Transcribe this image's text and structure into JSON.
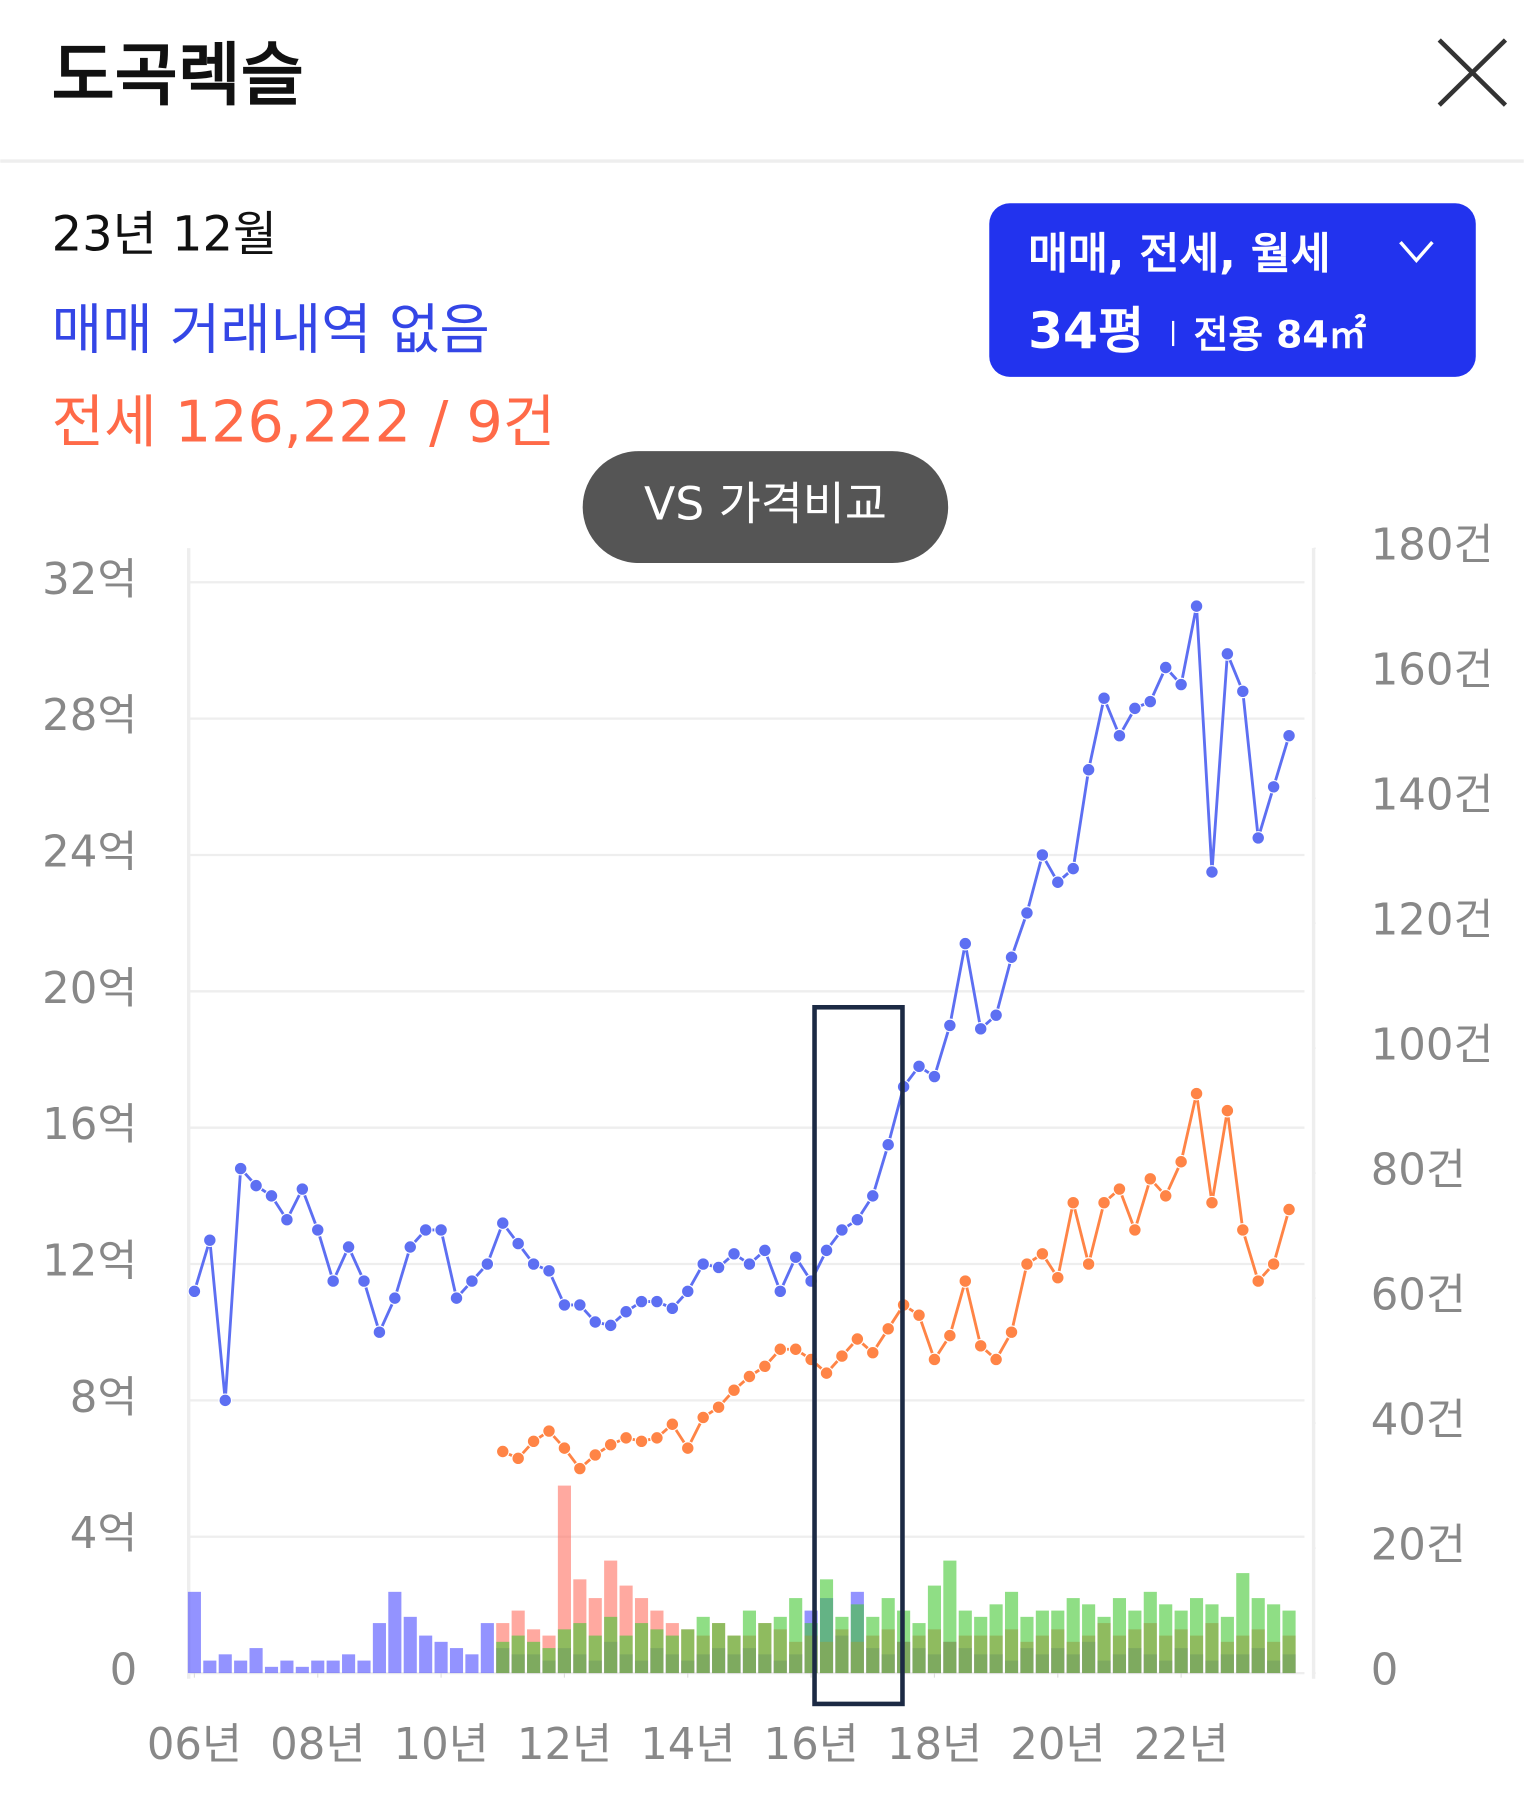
{
  "header": {
    "title": "도곡렉슬"
  },
  "info": {
    "date": "23년 12월",
    "sale": "매매 거래내역 없음",
    "jeonse": "전세 126,222 / 9건"
  },
  "filter": {
    "types": "매매, 전세, 월세",
    "size": "34평",
    "area": "전용 84㎡"
  },
  "compare": "VS 가격비교",
  "chart_data": {
    "type": "combo",
    "grid": true,
    "xlim": [
      2006,
      2024
    ],
    "xticks": [
      {
        "value": 2006,
        "label": "06년"
      },
      {
        "value": 2008,
        "label": "08년"
      },
      {
        "value": 2010,
        "label": "10년"
      },
      {
        "value": 2012,
        "label": "12년"
      },
      {
        "value": 2014,
        "label": "14년"
      },
      {
        "value": 2016,
        "label": "16년"
      },
      {
        "value": 2018,
        "label": "18년"
      },
      {
        "value": 2020,
        "label": "20년"
      },
      {
        "value": 2022,
        "label": "22년"
      }
    ],
    "ylim": [
      0,
      33
    ],
    "yticks": [
      0,
      {
        "value": 4,
        "label": "4억"
      },
      {
        "value": 8,
        "label": "8억"
      },
      {
        "value": 12,
        "label": "12억"
      },
      {
        "value": 16,
        "label": "16억"
      },
      {
        "value": 20,
        "label": "20억"
      },
      {
        "value": 24,
        "label": "24억"
      },
      {
        "value": 28,
        "label": "28억"
      },
      {
        "value": 32,
        "label": "32억"
      }
    ],
    "y2lim": [
      0,
      180
    ],
    "y2ticks": [
      0,
      {
        "value": 20,
        "label": "20건"
      },
      {
        "value": 40,
        "label": "40건"
      },
      {
        "value": 60,
        "label": "60건"
      },
      {
        "value": 80,
        "label": "80건"
      },
      {
        "value": 100,
        "label": "100건"
      },
      {
        "value": 120,
        "label": "120건"
      },
      {
        "value": 140,
        "label": "140건"
      },
      {
        "value": 160,
        "label": "160건"
      },
      {
        "value": 180,
        "label": "180건"
      }
    ],
    "x": [
      2006,
      2006.25,
      2006.5,
      2006.75,
      2007,
      2007.25,
      2007.5,
      2007.75,
      2008,
      2008.25,
      2008.5,
      2008.75,
      2009,
      2009.25,
      2009.5,
      2009.75,
      2010,
      2010.25,
      2010.5,
      2010.75,
      2011,
      2011.25,
      2011.5,
      2011.75,
      2012,
      2012.25,
      2012.5,
      2012.75,
      2013,
      2013.25,
      2013.5,
      2013.75,
      2014,
      2014.25,
      2014.5,
      2014.75,
      2015,
      2015.25,
      2015.5,
      2015.75,
      2016,
      2016.25,
      2016.5,
      2016.75,
      2017,
      2017.25,
      2017.5,
      2017.75,
      2018,
      2018.25,
      2018.5,
      2018.75,
      2019,
      2019.25,
      2019.5,
      2019.75,
      2020,
      2020.25,
      2020.5,
      2020.75,
      2021,
      2021.25,
      2021.5,
      2021.75,
      2022,
      2022.25,
      2022.5,
      2022.75,
      2023,
      2023.25,
      2023.5,
      2023.75
    ],
    "series": [
      {
        "type": "bar",
        "axis": "y2",
        "color": "#4b4bff",
        "values": [
          13,
          2,
          3,
          2,
          4,
          1,
          2,
          1,
          2,
          2,
          3,
          2,
          8,
          13,
          9,
          6,
          5,
          4,
          3,
          8,
          4,
          3,
          3,
          2,
          4,
          3,
          2,
          5,
          3,
          2,
          4,
          3,
          2,
          3,
          4,
          3,
          4,
          3,
          2,
          3,
          10,
          12,
          6,
          13,
          4,
          3,
          5,
          4,
          3,
          5,
          4,
          3,
          3,
          2,
          4,
          3,
          4,
          3,
          5,
          2,
          3,
          4,
          3,
          2,
          4,
          3,
          2,
          3,
          3,
          4,
          2,
          3
        ]
      },
      {
        "type": "bar",
        "axis": "y2",
        "color": "#ff7060",
        "values": [
          null,
          null,
          null,
          null,
          null,
          null,
          null,
          null,
          null,
          null,
          null,
          null,
          null,
          null,
          null,
          null,
          null,
          null,
          null,
          null,
          8,
          10,
          7,
          6,
          30,
          15,
          12,
          18,
          14,
          12,
          10,
          8,
          7,
          6,
          8,
          6,
          6,
          8,
          7,
          5,
          6,
          5,
          7,
          5,
          6,
          7,
          5,
          6,
          7,
          5,
          6,
          6,
          6,
          7,
          5,
          6,
          7,
          5,
          6,
          8,
          6,
          7,
          8,
          6,
          7,
          6,
          8,
          5,
          6,
          7,
          5,
          6
        ]
      },
      {
        "type": "bar",
        "axis": "y2",
        "color": "#44c833",
        "values": [
          null,
          null,
          null,
          null,
          null,
          null,
          null,
          null,
          null,
          null,
          null,
          null,
          null,
          null,
          null,
          null,
          null,
          null,
          null,
          null,
          5,
          6,
          5,
          4,
          7,
          8,
          6,
          9,
          6,
          8,
          7,
          6,
          7,
          9,
          8,
          6,
          10,
          8,
          9,
          12,
          8,
          15,
          9,
          11,
          9,
          12,
          10,
          8,
          14,
          18,
          10,
          9,
          11,
          13,
          9,
          10,
          10,
          12,
          11,
          9,
          12,
          10,
          13,
          11,
          10,
          12,
          11,
          9,
          16,
          12,
          11,
          10
        ]
      },
      {
        "type": "line",
        "color": "#5d6ff2",
        "values": [
          11.2,
          12.7,
          8.0,
          14.8,
          14.3,
          14.0,
          13.3,
          14.2,
          13.0,
          11.5,
          12.5,
          11.5,
          10.0,
          11.0,
          12.5,
          13.0,
          13.0,
          11.0,
          11.5,
          12.0,
          13.2,
          12.6,
          12.0,
          11.8,
          10.8,
          10.8,
          10.3,
          10.2,
          10.6,
          10.9,
          10.9,
          10.7,
          11.2,
          12.0,
          11.9,
          12.3,
          12.0,
          12.4,
          11.2,
          12.2,
          11.5,
          12.4,
          13.0,
          13.3,
          14.0,
          15.5,
          17.2,
          17.8,
          17.5,
          19.0,
          21.4,
          18.9,
          19.3,
          21.0,
          22.3,
          24.0,
          23.2,
          23.6,
          26.5,
          28.6,
          27.5,
          28.3,
          28.5,
          29.5,
          29.0,
          31.3,
          23.5,
          29.9,
          28.8,
          24.5,
          26.0,
          27.5
        ]
      },
      {
        "type": "line",
        "color": "#ff8446",
        "values": [
          null,
          null,
          null,
          null,
          null,
          null,
          null,
          null,
          null,
          null,
          null,
          null,
          null,
          null,
          null,
          null,
          null,
          null,
          null,
          null,
          6.5,
          6.3,
          6.8,
          7.1,
          6.6,
          6.0,
          6.4,
          6.7,
          6.9,
          6.8,
          6.9,
          7.3,
          6.6,
          7.5,
          7.8,
          8.3,
          8.7,
          9.0,
          9.5,
          9.5,
          9.2,
          8.8,
          9.3,
          9.8,
          9.4,
          10.1,
          10.8,
          10.5,
          9.2,
          9.9,
          11.5,
          9.6,
          9.2,
          10.0,
          12.0,
          12.3,
          11.6,
          13.8,
          12.0,
          13.8,
          14.2,
          13.0,
          14.5,
          14.0,
          15.0,
          17.0,
          13.8,
          16.5,
          13.0,
          11.5,
          12.0,
          13.6
        ]
      }
    ]
  }
}
